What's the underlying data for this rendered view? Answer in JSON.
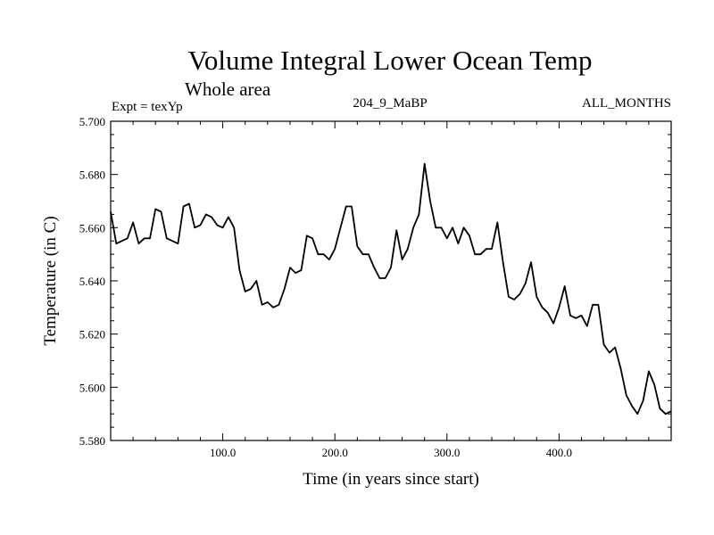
{
  "chart_data": {
    "type": "line",
    "title": "Volume Integral Lower Ocean Temp",
    "subtitle": "Whole area",
    "header_left": "Expt = texYp",
    "header_center": "204_9_MaBP",
    "header_right": "ALL_MONTHS",
    "xlabel": "Time (in years since start)",
    "ylabel": "Temperature (in C)",
    "xlim": [
      0,
      500
    ],
    "ylim": [
      5.58,
      5.7
    ],
    "x_ticks": [
      100,
      200,
      300,
      400
    ],
    "x_tick_labels": [
      "100.0",
      "200.0",
      "300.0",
      "400.0"
    ],
    "y_ticks": [
      5.58,
      5.6,
      5.62,
      5.64,
      5.66,
      5.68,
      5.7
    ],
    "y_tick_labels": [
      "5.580",
      "5.600",
      "5.620",
      "5.640",
      "5.660",
      "5.680",
      "5.700"
    ],
    "grid": false,
    "line_color": "#000000",
    "series": [
      {
        "x": [
          0,
          5,
          10,
          15,
          20,
          25,
          30,
          35,
          40,
          45,
          50,
          55,
          60,
          65,
          70,
          75,
          80,
          85,
          90,
          95,
          100,
          105,
          110,
          115,
          120,
          125,
          130,
          135,
          140,
          145,
          150,
          155,
          160,
          165,
          170,
          175,
          180,
          185,
          190,
          195,
          200,
          205,
          210,
          215,
          220,
          225,
          230,
          235,
          240,
          245,
          250,
          255,
          260,
          265,
          270,
          275,
          280,
          285,
          290,
          295,
          300,
          305,
          310,
          315,
          320,
          325,
          330,
          335,
          340,
          345,
          350,
          355,
          360,
          365,
          370,
          375,
          380,
          385,
          390,
          395,
          400,
          405,
          410,
          415,
          420,
          425,
          430,
          435,
          440,
          445,
          450,
          455,
          460,
          465,
          470,
          475,
          480,
          485,
          490,
          495,
          500
        ],
        "values": [
          5.666,
          5.654,
          5.655,
          5.656,
          5.662,
          5.654,
          5.656,
          5.656,
          5.667,
          5.666,
          5.656,
          5.655,
          5.654,
          5.668,
          5.669,
          5.66,
          5.661,
          5.665,
          5.664,
          5.661,
          5.66,
          5.664,
          5.66,
          5.644,
          5.636,
          5.637,
          5.64,
          5.631,
          5.632,
          5.63,
          5.631,
          5.637,
          5.645,
          5.643,
          5.644,
          5.657,
          5.656,
          5.65,
          5.65,
          5.648,
          5.652,
          5.66,
          5.668,
          5.668,
          5.653,
          5.65,
          5.65,
          5.645,
          5.641,
          5.641,
          5.645,
          5.659,
          5.648,
          5.652,
          5.66,
          5.665,
          5.684,
          5.67,
          5.66,
          5.66,
          5.656,
          5.66,
          5.654,
          5.66,
          5.657,
          5.65,
          5.65,
          5.652,
          5.652,
          5.662,
          5.647,
          5.634,
          5.633,
          5.635,
          5.639,
          5.647,
          5.634,
          5.63,
          5.628,
          5.624,
          5.63,
          5.638,
          5.627,
          5.626,
          5.627,
          5.623,
          5.631,
          5.631,
          5.616,
          5.613,
          5.615,
          5.607,
          5.597,
          5.593,
          5.59,
          5.595,
          5.606,
          5.601,
          5.592,
          5.59,
          5.591
        ]
      }
    ]
  }
}
